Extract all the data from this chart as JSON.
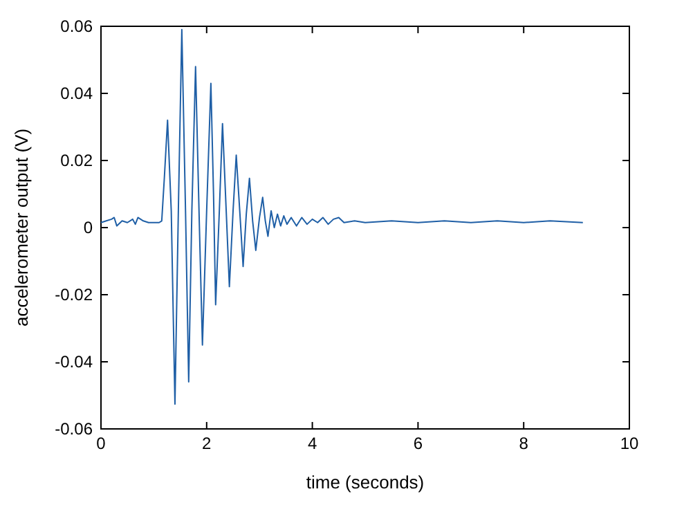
{
  "chart_data": {
    "type": "line",
    "xlabel": "time (seconds)",
    "ylabel": "accelerometer output (V)",
    "xlim": [
      0,
      10
    ],
    "ylim": [
      -0.06,
      0.06
    ],
    "xticks": [
      0,
      2,
      4,
      6,
      8,
      10
    ],
    "yticks": [
      -0.06,
      -0.04,
      -0.02,
      0,
      0.02,
      0.04,
      0.06
    ],
    "grid": false,
    "marker": "none",
    "line_style": "solid",
    "series": [
      {
        "color": "#1f5fa6",
        "x": [
          0,
          0.1,
          0.2,
          0.25,
          0.3,
          0.4,
          0.5,
          0.6,
          0.65,
          0.7,
          0.8,
          0.9,
          1.0,
          1.1,
          1.15,
          1.2,
          1.26,
          1.33,
          1.4,
          1.47,
          1.53,
          1.6,
          1.66,
          1.72,
          1.79,
          1.86,
          1.92,
          2.0,
          2.08,
          2.13,
          2.17,
          2.24,
          2.3,
          2.37,
          2.43,
          2.5,
          2.56,
          2.63,
          2.69,
          2.75,
          2.81,
          2.87,
          2.93,
          3.0,
          3.06,
          3.11,
          3.16,
          3.22,
          3.28,
          3.34,
          3.4,
          3.46,
          3.52,
          3.6,
          3.7,
          3.8,
          3.9,
          4.0,
          4.1,
          4.2,
          4.3,
          4.4,
          4.5,
          4.6,
          4.8,
          5.0,
          5.5,
          6.0,
          6.5,
          7.0,
          7.5,
          8.0,
          8.5,
          9.12
        ],
        "values": [
          0.0015,
          0.002,
          0.0025,
          0.003,
          0.0005,
          0.002,
          0.0015,
          0.0025,
          0.001,
          0.003,
          0.002,
          0.0015,
          0.0015,
          0.0015,
          0.002,
          0.015,
          0.032,
          0.005,
          -0.0526,
          0.01,
          0.059,
          0.005,
          -0.046,
          0.005,
          0.048,
          0.002,
          -0.035,
          0.005,
          0.043,
          0.01,
          -0.023,
          0.005,
          0.031,
          0.005,
          -0.0176,
          0.005,
          0.0216,
          0.004,
          -0.0116,
          0.004,
          0.0147,
          0.002,
          -0.0068,
          0.003,
          0.009,
          0.002,
          -0.0026,
          0.005,
          0.0,
          0.004,
          0.0005,
          0.0035,
          0.001,
          0.003,
          0.0005,
          0.003,
          0.001,
          0.0025,
          0.0015,
          0.003,
          0.001,
          0.0025,
          0.003,
          0.0015,
          0.002,
          0.0015,
          0.002,
          0.0015,
          0.002,
          0.0015,
          0.002,
          0.0015,
          0.002,
          0.0015
        ]
      }
    ]
  }
}
